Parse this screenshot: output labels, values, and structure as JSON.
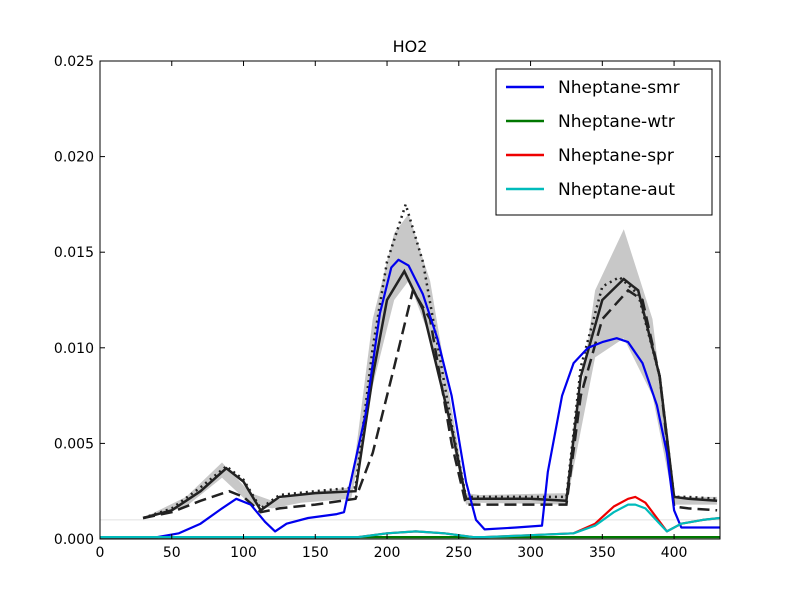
{
  "chart_data": {
    "type": "line",
    "title": "HO2",
    "xlabel": "",
    "ylabel": "",
    "xlim": [
      0,
      432
    ],
    "ylim": [
      0,
      0.025
    ],
    "x_ticks": [
      {
        "value": 0,
        "label": "0"
      },
      {
        "value": 50,
        "label": "50"
      },
      {
        "value": 100,
        "label": "100"
      },
      {
        "value": 150,
        "label": "150"
      },
      {
        "value": 200,
        "label": "200"
      },
      {
        "value": 250,
        "label": "250"
      },
      {
        "value": 300,
        "label": "300"
      },
      {
        "value": 350,
        "label": "350"
      },
      {
        "value": 400,
        "label": "400"
      }
    ],
    "y_ticks": [
      {
        "value": 0,
        "label": "0.000"
      },
      {
        "value": 0.005,
        "label": "0.005"
      },
      {
        "value": 0.01,
        "label": "0.010"
      },
      {
        "value": 0.015,
        "label": "0.015"
      },
      {
        "value": 0.02,
        "label": "0.020"
      },
      {
        "value": 0.025,
        "label": "0.025"
      }
    ],
    "grid": false,
    "legend_position": "top-right",
    "background": {
      "band": {
        "color": "#c8c8c8",
        "x": [
          30,
          60,
          85,
          105,
          120,
          140,
          175,
          190,
          205,
          215,
          230,
          255,
          265,
          325,
          345,
          365,
          385,
          400,
          430
        ],
        "lower": [
          0.001,
          0.0017,
          0.0032,
          0.0018,
          0.0016,
          0.0019,
          0.0021,
          0.008,
          0.0125,
          0.0135,
          0.0105,
          0.0018,
          0.0019,
          0.0018,
          0.0095,
          0.0105,
          0.0075,
          0.0018,
          0.0018
        ],
        "upper": [
          0.0011,
          0.0022,
          0.004,
          0.0024,
          0.002,
          0.0024,
          0.0027,
          0.0115,
          0.016,
          0.017,
          0.0135,
          0.0024,
          0.0023,
          0.0024,
          0.013,
          0.0162,
          0.0115,
          0.0022,
          0.0022
        ]
      },
      "reference_lines": [
        {
          "color": "#222222",
          "dash": "solid",
          "x": [
            30,
            50,
            70,
            88,
            100,
            112,
            125,
            150,
            178,
            190,
            200,
            212,
            225,
            245,
            255,
            265,
            300,
            325,
            335,
            350,
            365,
            375,
            390,
            400,
            410,
            430
          ],
          "y": [
            0.0011,
            0.0015,
            0.0025,
            0.0037,
            0.003,
            0.0015,
            0.0022,
            0.0024,
            0.0025,
            0.0085,
            0.0125,
            0.014,
            0.012,
            0.0058,
            0.0021,
            0.0021,
            0.0021,
            0.002,
            0.0085,
            0.0125,
            0.0136,
            0.013,
            0.0085,
            0.0022,
            0.0021,
            0.002
          ]
        },
        {
          "color": "#222222",
          "dash": "dashed",
          "x": [
            30,
            50,
            70,
            90,
            100,
            112,
            125,
            150,
            178,
            190,
            205,
            218,
            230,
            245,
            255,
            265,
            300,
            325,
            335,
            350,
            368,
            378,
            390,
            400,
            410,
            430
          ],
          "y": [
            0.0011,
            0.0014,
            0.002,
            0.0025,
            0.0022,
            0.0014,
            0.0016,
            0.0018,
            0.0021,
            0.0045,
            0.009,
            0.013,
            0.0115,
            0.005,
            0.0018,
            0.0018,
            0.0018,
            0.0018,
            0.0075,
            0.0115,
            0.013,
            0.0125,
            0.0085,
            0.0017,
            0.0016,
            0.0015
          ]
        },
        {
          "color": "#222222",
          "dash": "dotted",
          "x": [
            30,
            50,
            70,
            88,
            100,
            112,
            125,
            150,
            178,
            190,
            200,
            213,
            225,
            245,
            255,
            265,
            300,
            325,
            335,
            350,
            362,
            375,
            390,
            400,
            410,
            430
          ],
          "y": [
            0.0011,
            0.0016,
            0.0027,
            0.0038,
            0.0031,
            0.0016,
            0.0023,
            0.0025,
            0.0027,
            0.01,
            0.0145,
            0.0175,
            0.0145,
            0.006,
            0.0022,
            0.0022,
            0.0022,
            0.0022,
            0.009,
            0.0132,
            0.0137,
            0.0128,
            0.0085,
            0.0022,
            0.0022,
            0.0021
          ]
        }
      ],
      "horizontal_line": {
        "y": 0.001,
        "color": "#e0e0e0"
      }
    },
    "series": [
      {
        "name": "Nheptane-smr",
        "color": "#0000ee",
        "x": [
          0,
          40,
          55,
          70,
          85,
          95,
          105,
          115,
          122,
          130,
          145,
          165,
          170,
          185,
          195,
          203,
          208,
          215,
          225,
          235,
          245,
          255,
          262,
          268,
          290,
          308,
          312,
          322,
          330,
          340,
          350,
          360,
          368,
          378,
          388,
          395,
          400,
          405,
          420,
          432
        ],
        "y": [
          0.0001,
          0.0001,
          0.0003,
          0.0008,
          0.0016,
          0.0021,
          0.0018,
          0.0009,
          0.0004,
          0.0008,
          0.0011,
          0.0013,
          0.0014,
          0.0065,
          0.0118,
          0.0142,
          0.0146,
          0.0143,
          0.0128,
          0.0105,
          0.0075,
          0.003,
          0.001,
          0.0005,
          0.0006,
          0.0007,
          0.0035,
          0.0075,
          0.0092,
          0.01,
          0.0103,
          0.0105,
          0.0103,
          0.0092,
          0.007,
          0.0045,
          0.0015,
          0.0006,
          0.0006,
          0.0006
        ]
      },
      {
        "name": "Nheptane-wtr",
        "color": "#007700",
        "x": [
          0,
          100,
          200,
          300,
          400,
          432
        ],
        "y": [
          0.0001,
          0.0001,
          0.0001,
          0.0001,
          0.0001,
          0.0001
        ]
      },
      {
        "name": "Nheptane-spr",
        "color": "#ee0000",
        "x": [
          0,
          150,
          180,
          200,
          220,
          240,
          260,
          268,
          300,
          330,
          345,
          358,
          368,
          373,
          380,
          390,
          395,
          405,
          420,
          432
        ],
        "y": [
          0.0001,
          0.0001,
          0.0001,
          0.0003,
          0.0004,
          0.0003,
          0.0001,
          0.0001,
          0.0002,
          0.0003,
          0.0008,
          0.0017,
          0.0021,
          0.0022,
          0.0019,
          0.0009,
          0.0004,
          0.0008,
          0.001,
          0.0011
        ]
      },
      {
        "name": "Nheptane-aut",
        "color": "#00bbbb",
        "x": [
          0,
          150,
          180,
          200,
          220,
          240,
          260,
          268,
          300,
          330,
          345,
          358,
          368,
          373,
          380,
          390,
          395,
          405,
          420,
          432
        ],
        "y": [
          0.0001,
          0.0001,
          0.0001,
          0.0003,
          0.0004,
          0.0003,
          0.0001,
          0.0001,
          0.0002,
          0.0003,
          0.0007,
          0.0014,
          0.0018,
          0.0018,
          0.0016,
          0.0008,
          0.0004,
          0.0008,
          0.001,
          0.0011
        ]
      }
    ]
  }
}
